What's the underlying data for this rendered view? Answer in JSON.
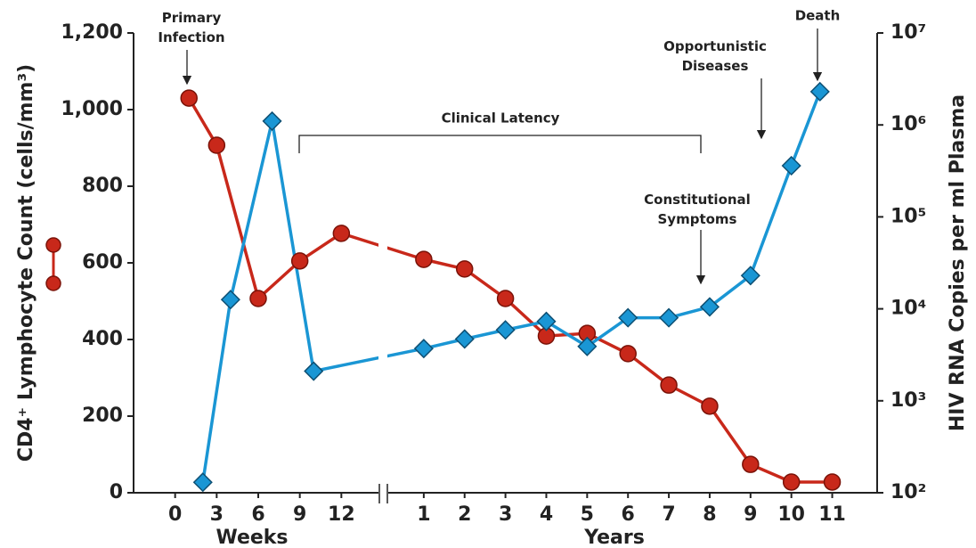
{
  "chart_data": {
    "type": "line",
    "y_label": "CD4⁺ Lymphocyte Count (cells/mm³)",
    "y2_label": "HIV RNA Copies per ml Plasma",
    "ylim": [
      0,
      1200
    ],
    "yticks": [
      0,
      200,
      400,
      600,
      800,
      {
        "value": 1000,
        "label": "1,000"
      },
      {
        "value": 1200,
        "label": "1,200"
      }
    ],
    "y2lim": [
      100,
      10000000
    ],
    "y2scale": "log",
    "y2ticks": [
      {
        "value": 100,
        "label": "10²"
      },
      {
        "value": 1000,
        "label": "10³"
      },
      {
        "value": 10000,
        "label": "10⁴"
      },
      {
        "value": 100000,
        "label": "10⁵"
      },
      {
        "value": 1000000,
        "label": "10⁶"
      },
      {
        "value": 10000000,
        "label": "10⁷"
      }
    ],
    "x_weeks": {
      "label": "Weeks",
      "xlim": [
        -3,
        15
      ],
      "xticks": [
        0,
        3,
        6,
        9,
        12
      ]
    },
    "x_years": {
      "label": "Years",
      "xlim": [
        0,
        12.1
      ],
      "xticks": [
        1,
        2,
        3,
        4,
        5,
        6,
        7,
        8,
        9,
        10,
        11
      ]
    },
    "series": [
      {
        "color": "#c8281a",
        "marker": "circle",
        "axis": "y",
        "weeks_x": [
          1,
          3,
          6,
          9,
          12
        ],
        "weeks_values": [
          1030,
          907,
          507,
          605,
          677
        ],
        "years_x": [
          1,
          2,
          3,
          4,
          5,
          6,
          7,
          8,
          9,
          10,
          11
        ],
        "years_values": [
          609,
          584,
          507,
          409,
          416,
          363,
          281,
          226,
          74,
          28,
          28
        ]
      },
      {
        "color": "#1a96d4",
        "marker": "diamond",
        "axis": "y2",
        "weeks_x": [
          2,
          4,
          7,
          10
        ],
        "weeks_values": [
          130,
          12600,
          1100000,
          2100
        ],
        "years_x": [
          1,
          2,
          3,
          4,
          5,
          6,
          7,
          8,
          9,
          10,
          10.7
        ],
        "years_values": [
          3700,
          4700,
          5900,
          7300,
          3900,
          8000,
          8000,
          10500,
          23000,
          360000,
          2300000
        ]
      }
    ],
    "annotations": [
      {
        "lines": [
          "Primary",
          "Infection"
        ]
      },
      {
        "lines": [
          "Clinical Latency"
        ]
      },
      {
        "lines": [
          "Constitutional",
          "Symptoms"
        ]
      },
      {
        "lines": [
          "Opportunistic",
          "Diseases"
        ]
      },
      {
        "lines": [
          "Death"
        ]
      }
    ]
  }
}
